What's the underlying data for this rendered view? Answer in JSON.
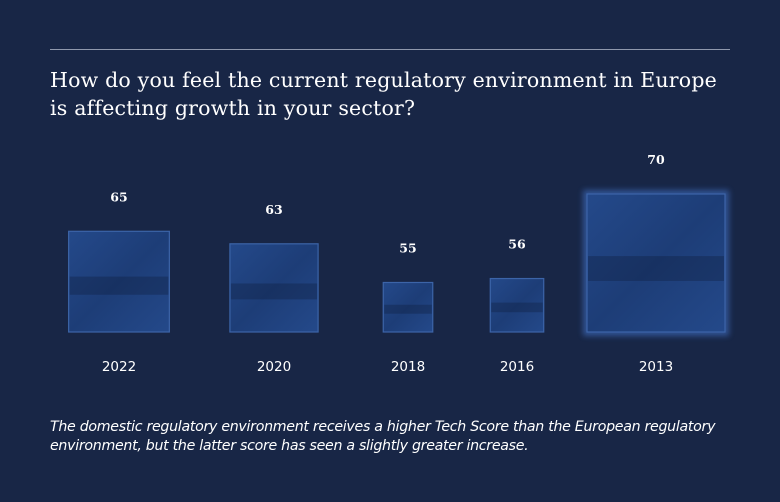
{
  "title": "How do you feel the current regulatory environment in Europe is affecting growth in your sector?",
  "caption": "The domestic regulatory environment receives a higher Tech Score than the European regulatory environment, but the latter score has seen a slightly greater increase.",
  "colors": {
    "background": "#182646",
    "square_fill": "#1f3f78",
    "square_edge": "#3c64a8",
    "text": "#ffffff"
  },
  "chart_data": {
    "type": "bar",
    "encoding": "square-area",
    "title": "How do you feel the current regulatory environment in Europe is affecting growth in your sector?",
    "categories": [
      "2022",
      "2020",
      "2018",
      "2016",
      "2013"
    ],
    "values": [
      65,
      63,
      55,
      56,
      70
    ],
    "xlabel": "",
    "ylabel": "",
    "grid": false,
    "legend": "none"
  }
}
